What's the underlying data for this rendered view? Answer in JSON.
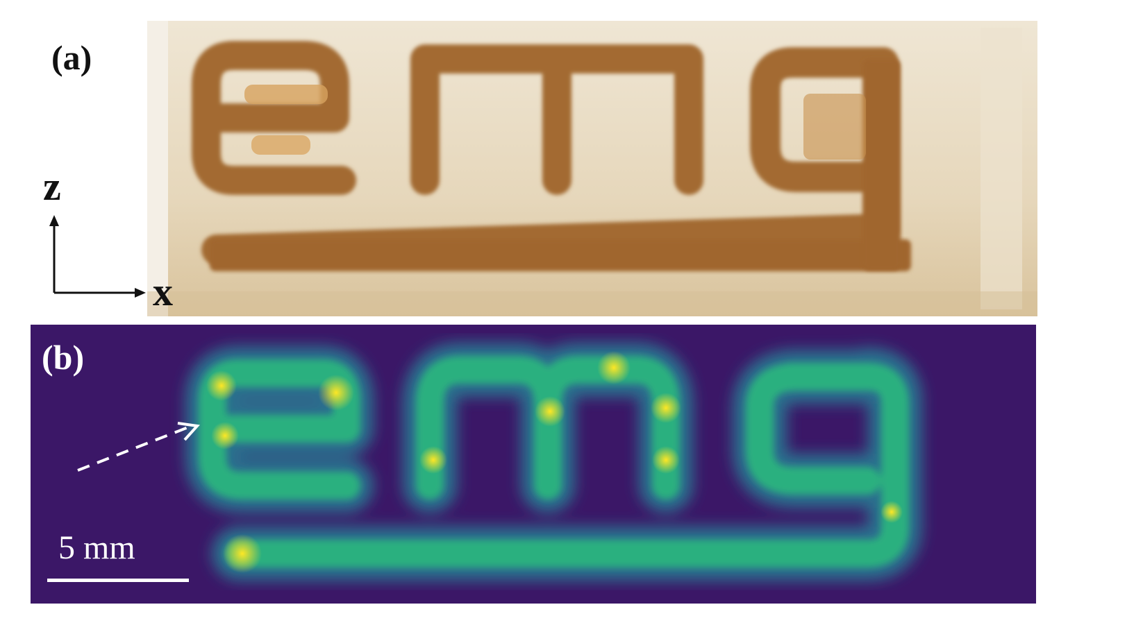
{
  "panels": {
    "a": {
      "label": "(a)"
    },
    "b": {
      "label": "(b)"
    }
  },
  "axes": {
    "z_label": "z",
    "x_label": "x"
  },
  "scalebar": {
    "label": "5 mm"
  },
  "specimen_text": "emg",
  "colors": {
    "substrate": "#e9dcc2",
    "inclusion": "#a86f35",
    "heatmap_background": "#3b1767",
    "heatmap_mid": "#21918c",
    "heatmap_peak": "#fde725"
  }
}
